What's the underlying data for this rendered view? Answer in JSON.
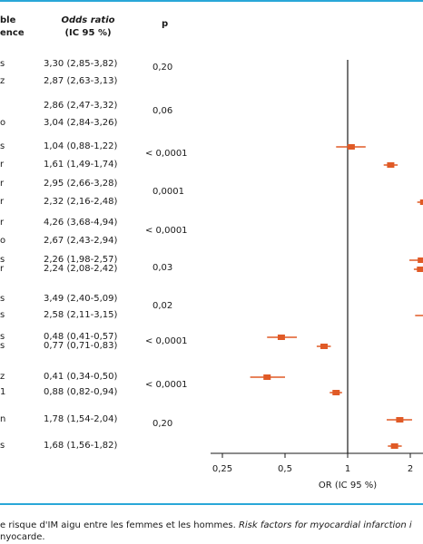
{
  "headers": {
    "left_line1": "ble",
    "left_line2": "ence",
    "or_line1": "Odds ratio",
    "or_line2": "(IC 95 %)",
    "p": "p"
  },
  "row_labels": [
    "s",
    "z",
    "",
    "o",
    "s",
    "r",
    "r",
    "r",
    "r",
    "o",
    "s",
    "r",
    "s",
    "s",
    "s",
    "s",
    "z",
    "1",
    "n",
    "s"
  ],
  "p_values": [
    "0,20",
    "0,06",
    "< 0,0001",
    "0,0001",
    "< 0,0001",
    "0,03",
    "0,02",
    "< 0,0001",
    "< 0,0001",
    "0,20"
  ],
  "chart_data": {
    "type": "forest",
    "xlabel": "OR (IC 95 %)",
    "x_scale": "log",
    "x_ticks": [
      "0,25",
      "0,5",
      "1",
      "2"
    ],
    "reference_line": 1,
    "rows": [
      {
        "label": "3,30 (2,85-3,82)",
        "or": 3.3,
        "lo": 2.85,
        "hi": 3.82
      },
      {
        "label": "2,87 (2,63-3,13)",
        "or": 2.87,
        "lo": 2.63,
        "hi": 3.13
      },
      {
        "label": "2,86 (2,47-3,32)",
        "or": 2.86,
        "lo": 2.47,
        "hi": 3.32
      },
      {
        "label": "3,04 (2,84-3,26)",
        "or": 3.04,
        "lo": 2.84,
        "hi": 3.26
      },
      {
        "label": "1,04 (0,88-1,22)",
        "or": 1.04,
        "lo": 0.88,
        "hi": 1.22
      },
      {
        "label": "1,61 (1,49-1,74)",
        "or": 1.61,
        "lo": 1.49,
        "hi": 1.74
      },
      {
        "label": "2,95 (2,66-3,28)",
        "or": 2.95,
        "lo": 2.66,
        "hi": 3.28
      },
      {
        "label": "2,32 (2,16-2,48)",
        "or": 2.32,
        "lo": 2.16,
        "hi": 2.48
      },
      {
        "label": "4,26 (3,68-4,94)",
        "or": 4.26,
        "lo": 3.68,
        "hi": 4.94
      },
      {
        "label": "2,67 (2,43-2,94)",
        "or": 2.67,
        "lo": 2.43,
        "hi": 2.94
      },
      {
        "label": "2,26 (1,98-2,57)",
        "or": 2.26,
        "lo": 1.98,
        "hi": 2.57
      },
      {
        "label": "2,24 (2,08-2,42)",
        "or": 2.24,
        "lo": 2.08,
        "hi": 2.42
      },
      {
        "label": "3,49 (2,40-5,09)",
        "or": 3.49,
        "lo": 2.4,
        "hi": 5.09
      },
      {
        "label": "2,58 (2,11-3,15)",
        "or": 2.58,
        "lo": 2.11,
        "hi": 3.15
      },
      {
        "label": "0,48 (0,41-0,57)",
        "or": 0.48,
        "lo": 0.41,
        "hi": 0.57
      },
      {
        "label": "0,77 (0,71-0,83)",
        "or": 0.77,
        "lo": 0.71,
        "hi": 0.83
      },
      {
        "label": "0,41 (0,34-0,50)",
        "or": 0.41,
        "lo": 0.34,
        "hi": 0.5
      },
      {
        "label": "0,88 (0,82-0,94)",
        "or": 0.88,
        "lo": 0.82,
        "hi": 0.94
      },
      {
        "label": "1,78 (1,54-2,04)",
        "or": 1.78,
        "lo": 1.54,
        "hi": 2.04
      },
      {
        "label": "1,68 (1,56-1,82)",
        "or": 1.68,
        "lo": 1.56,
        "hi": 1.82
      }
    ]
  },
  "caption": {
    "line1_plain": "e risque d'IM aigu entre les femmes et les hommes. ",
    "line1_italic": "Risk factors for myocardial infarction i",
    "line2": "nyocarde."
  },
  "colors": {
    "accent_rule": "#29a7d8",
    "marker": "#e05a26"
  }
}
